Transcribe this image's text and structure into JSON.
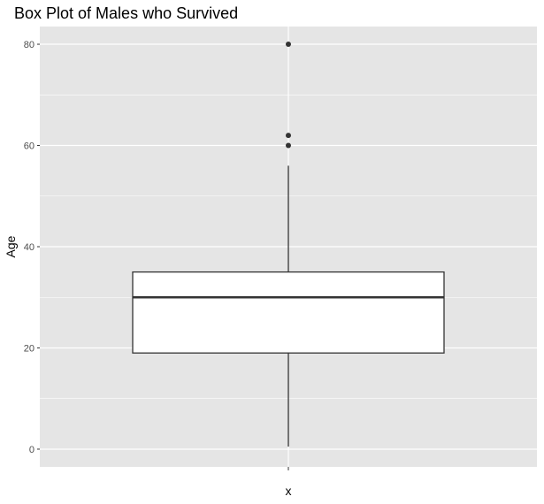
{
  "chart_data": {
    "type": "box",
    "title": "Box Plot of Males who Survived",
    "xlabel": "x",
    "ylabel": "Age",
    "ylim": [
      -3.5,
      83.5
    ],
    "y_ticks": [
      0,
      20,
      40,
      60,
      80
    ],
    "y_tick_labels": [
      "0",
      "20",
      "40",
      "60",
      "80"
    ],
    "grid": true,
    "box": {
      "whisker_low": 0.5,
      "q1": 19,
      "median": 30,
      "q3": 35,
      "whisker_high": 56,
      "outliers": [
        60,
        62,
        80
      ]
    }
  },
  "colors": {
    "panel": "#e5e5e5",
    "grid": "#ffffff",
    "box_fill": "#ffffff",
    "box_stroke": "#333333",
    "points": "#333333"
  }
}
